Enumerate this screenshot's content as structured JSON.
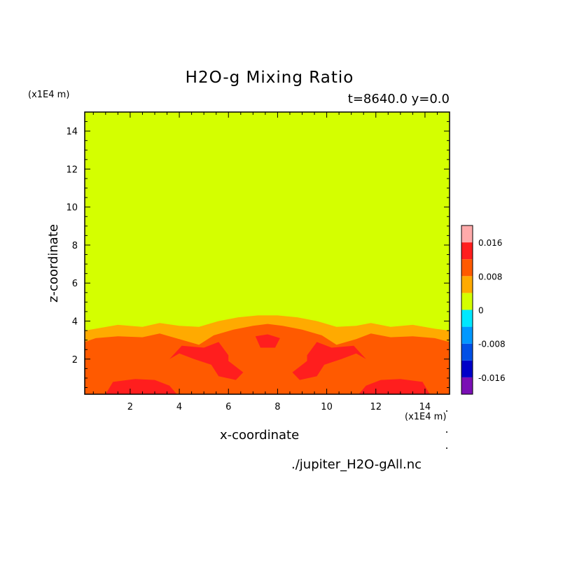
{
  "chart_data": {
    "type": "heatmap",
    "title": "H2O-g Mixing Ratio",
    "subtitle": "t=8640.0 y=0.0",
    "xlabel": "x-coordinate",
    "ylabel": "z-coordinate",
    "x_unit": "(x1E4 m)",
    "y_unit": "(x1E4 m)",
    "xlim": [
      0.15,
      15
    ],
    "ylim": [
      0.15,
      15
    ],
    "xticks": [
      2,
      4,
      6,
      8,
      10,
      12,
      14
    ],
    "yticks": [
      2,
      4,
      6,
      8,
      10,
      12,
      14
    ],
    "source_file": "./jupiter_H2O-gAll.nc",
    "colorbar": {
      "levels": [
        {
          "min": -0.02,
          "max": -0.016,
          "color": "#7a0fb5"
        },
        {
          "min": -0.016,
          "max": -0.012,
          "color": "#0000c8"
        },
        {
          "min": -0.012,
          "max": -0.008,
          "color": "#0050e6"
        },
        {
          "min": -0.008,
          "max": -0.004,
          "color": "#0098ff"
        },
        {
          "min": -0.004,
          "max": 0,
          "color": "#00e8ff"
        },
        {
          "min": 0,
          "max": 0.004,
          "color": "#d4ff00"
        },
        {
          "min": 0.004,
          "max": 0.008,
          "color": "#ffaa00"
        },
        {
          "min": 0.008,
          "max": 0.012,
          "color": "#ff5a00"
        },
        {
          "min": 0.012,
          "max": 0.016,
          "color": "#ff1e1e"
        },
        {
          "min": 0.016,
          "max": 0.02,
          "color": "#ffaaaa"
        }
      ],
      "tick_labels": [
        "0.016",
        "0.008",
        "0",
        "-0.008",
        "-0.016"
      ],
      "tick_values": [
        0.016,
        0.008,
        0,
        -0.008,
        -0.016
      ]
    },
    "regions": {
      "background_value_color": "#d4ff00",
      "band_0004_top": [
        [
          0.15,
          3.5
        ],
        [
          0.6,
          3.6
        ],
        [
          1.5,
          3.8
        ],
        [
          2.5,
          3.7
        ],
        [
          3.2,
          3.9
        ],
        [
          4.0,
          3.75
        ],
        [
          4.8,
          3.7
        ],
        [
          5.6,
          4.0
        ],
        [
          6.4,
          4.2
        ],
        [
          7.2,
          4.3
        ],
        [
          8.0,
          4.3
        ],
        [
          8.8,
          4.2
        ],
        [
          9.6,
          4.0
        ],
        [
          10.4,
          3.7
        ],
        [
          11.2,
          3.75
        ],
        [
          11.8,
          3.9
        ],
        [
          12.6,
          3.7
        ],
        [
          13.5,
          3.8
        ],
        [
          14.4,
          3.6
        ],
        [
          15,
          3.5
        ]
      ],
      "band_0008_top": [
        [
          0.15,
          2.9
        ],
        [
          0.6,
          3.1
        ],
        [
          1.5,
          3.2
        ],
        [
          2.5,
          3.15
        ],
        [
          3.2,
          3.35
        ],
        [
          4.0,
          3.05
        ],
        [
          4.8,
          2.75
        ],
        [
          5.4,
          3.25
        ],
        [
          6.2,
          3.55
        ],
        [
          7.0,
          3.75
        ],
        [
          7.6,
          3.85
        ],
        [
          8.2,
          3.75
        ],
        [
          9.0,
          3.55
        ],
        [
          9.8,
          3.25
        ],
        [
          10.4,
          2.75
        ],
        [
          11.2,
          3.05
        ],
        [
          11.8,
          3.35
        ],
        [
          12.6,
          3.15
        ],
        [
          13.5,
          3.2
        ],
        [
          14.4,
          3.1
        ],
        [
          15,
          2.9
        ]
      ],
      "red_blobs": [
        [
          [
            5.0,
            2.6
          ],
          [
            5.6,
            2.9
          ],
          [
            6.0,
            2.2
          ],
          [
            6.0,
            1.9
          ],
          [
            6.6,
            1.3
          ],
          [
            6.3,
            0.9
          ],
          [
            5.6,
            1.1
          ],
          [
            5.3,
            1.7
          ],
          [
            4.6,
            2.0
          ],
          [
            4.0,
            2.3
          ],
          [
            3.6,
            2.0
          ],
          [
            4.1,
            2.7
          ]
        ],
        [
          [
            10.2,
            2.6
          ],
          [
            9.6,
            2.9
          ],
          [
            9.2,
            2.2
          ],
          [
            9.2,
            1.9
          ],
          [
            8.6,
            1.3
          ],
          [
            8.9,
            0.9
          ],
          [
            9.6,
            1.1
          ],
          [
            9.9,
            1.7
          ],
          [
            10.6,
            2.0
          ],
          [
            11.2,
            2.3
          ],
          [
            11.6,
            2.0
          ],
          [
            11.1,
            2.7
          ]
        ],
        [
          [
            7.1,
            3.2
          ],
          [
            7.6,
            3.3
          ],
          [
            8.1,
            3.1
          ],
          [
            7.9,
            2.6
          ],
          [
            7.3,
            2.6
          ]
        ],
        [
          [
            1.0,
            0.15
          ],
          [
            1.3,
            0.8
          ],
          [
            2.2,
            0.95
          ],
          [
            3.0,
            0.9
          ],
          [
            3.6,
            0.6
          ],
          [
            3.9,
            0.15
          ]
        ],
        [
          [
            11.3,
            0.15
          ],
          [
            11.6,
            0.6
          ],
          [
            12.2,
            0.9
          ],
          [
            13.0,
            0.95
          ],
          [
            13.9,
            0.8
          ],
          [
            14.2,
            0.15
          ]
        ]
      ]
    }
  }
}
